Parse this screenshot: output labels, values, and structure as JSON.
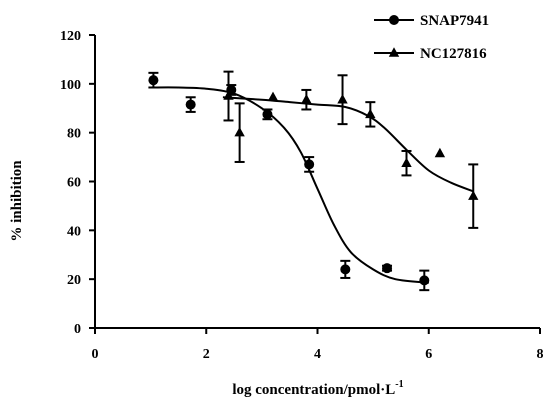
{
  "chart_data": {
    "type": "scatter",
    "xlabel": "log concentration/pmol·L",
    "xlabel_superscript": "-1",
    "ylabel": "% inhibition",
    "xlim": [
      0,
      8
    ],
    "ylim": [
      0,
      120
    ],
    "x_ticks": [
      "0",
      "2",
      "4",
      "6",
      "8"
    ],
    "y_ticks": [
      "0",
      "20",
      "40",
      "60",
      "80",
      "100",
      "120"
    ],
    "grid": false,
    "legend_position": "top-right",
    "series": [
      {
        "name": "SNAP7941",
        "marker": "circle",
        "points": [
          {
            "x": 1.05,
            "y": 101.5,
            "err": 3
          },
          {
            "x": 1.72,
            "y": 91.5,
            "err": 3
          },
          {
            "x": 2.45,
            "y": 97.5,
            "err": 2
          },
          {
            "x": 3.1,
            "y": 87.5,
            "err": 2
          },
          {
            "x": 3.85,
            "y": 67,
            "err": 3
          },
          {
            "x": 4.5,
            "y": 24,
            "err": 3.5
          },
          {
            "x": 5.25,
            "y": 24.5,
            "err": 1
          },
          {
            "x": 5.92,
            "y": 19.5,
            "err": 4
          }
        ],
        "curve": [
          [
            1.0,
            98.5
          ],
          [
            1.5,
            98.5
          ],
          [
            2.0,
            98
          ],
          [
            2.5,
            96
          ],
          [
            3.0,
            90
          ],
          [
            3.4,
            82
          ],
          [
            3.7,
            72
          ],
          [
            4.0,
            57
          ],
          [
            4.3,
            42
          ],
          [
            4.6,
            31
          ],
          [
            5.0,
            24
          ],
          [
            5.4,
            20
          ],
          [
            6.0,
            18.5
          ]
        ]
      },
      {
        "name": "NC127816",
        "marker": "triangle",
        "points": [
          {
            "x": 2.4,
            "y": 95,
            "err": 10
          },
          {
            "x": 2.6,
            "y": 80,
            "err": 12
          },
          {
            "x": 3.2,
            "y": 94.5,
            "err": 0
          },
          {
            "x": 3.8,
            "y": 93.5,
            "err": 4
          },
          {
            "x": 4.45,
            "y": 93.5,
            "err": 10
          },
          {
            "x": 4.95,
            "y": 87.5,
            "err": 5
          },
          {
            "x": 5.6,
            "y": 67.5,
            "err": 5
          },
          {
            "x": 6.2,
            "y": 71.5,
            "err": 0
          },
          {
            "x": 6.8,
            "y": 54,
            "err": 13
          }
        ],
        "curve": [
          [
            2.3,
            94.5
          ],
          [
            3.0,
            93.5
          ],
          [
            3.5,
            92.5
          ],
          [
            4.0,
            91.5
          ],
          [
            4.5,
            90.5
          ],
          [
            4.9,
            87
          ],
          [
            5.2,
            82
          ],
          [
            5.6,
            73
          ],
          [
            6.0,
            64.5
          ],
          [
            6.4,
            59.5
          ],
          [
            6.8,
            56
          ]
        ]
      }
    ]
  }
}
